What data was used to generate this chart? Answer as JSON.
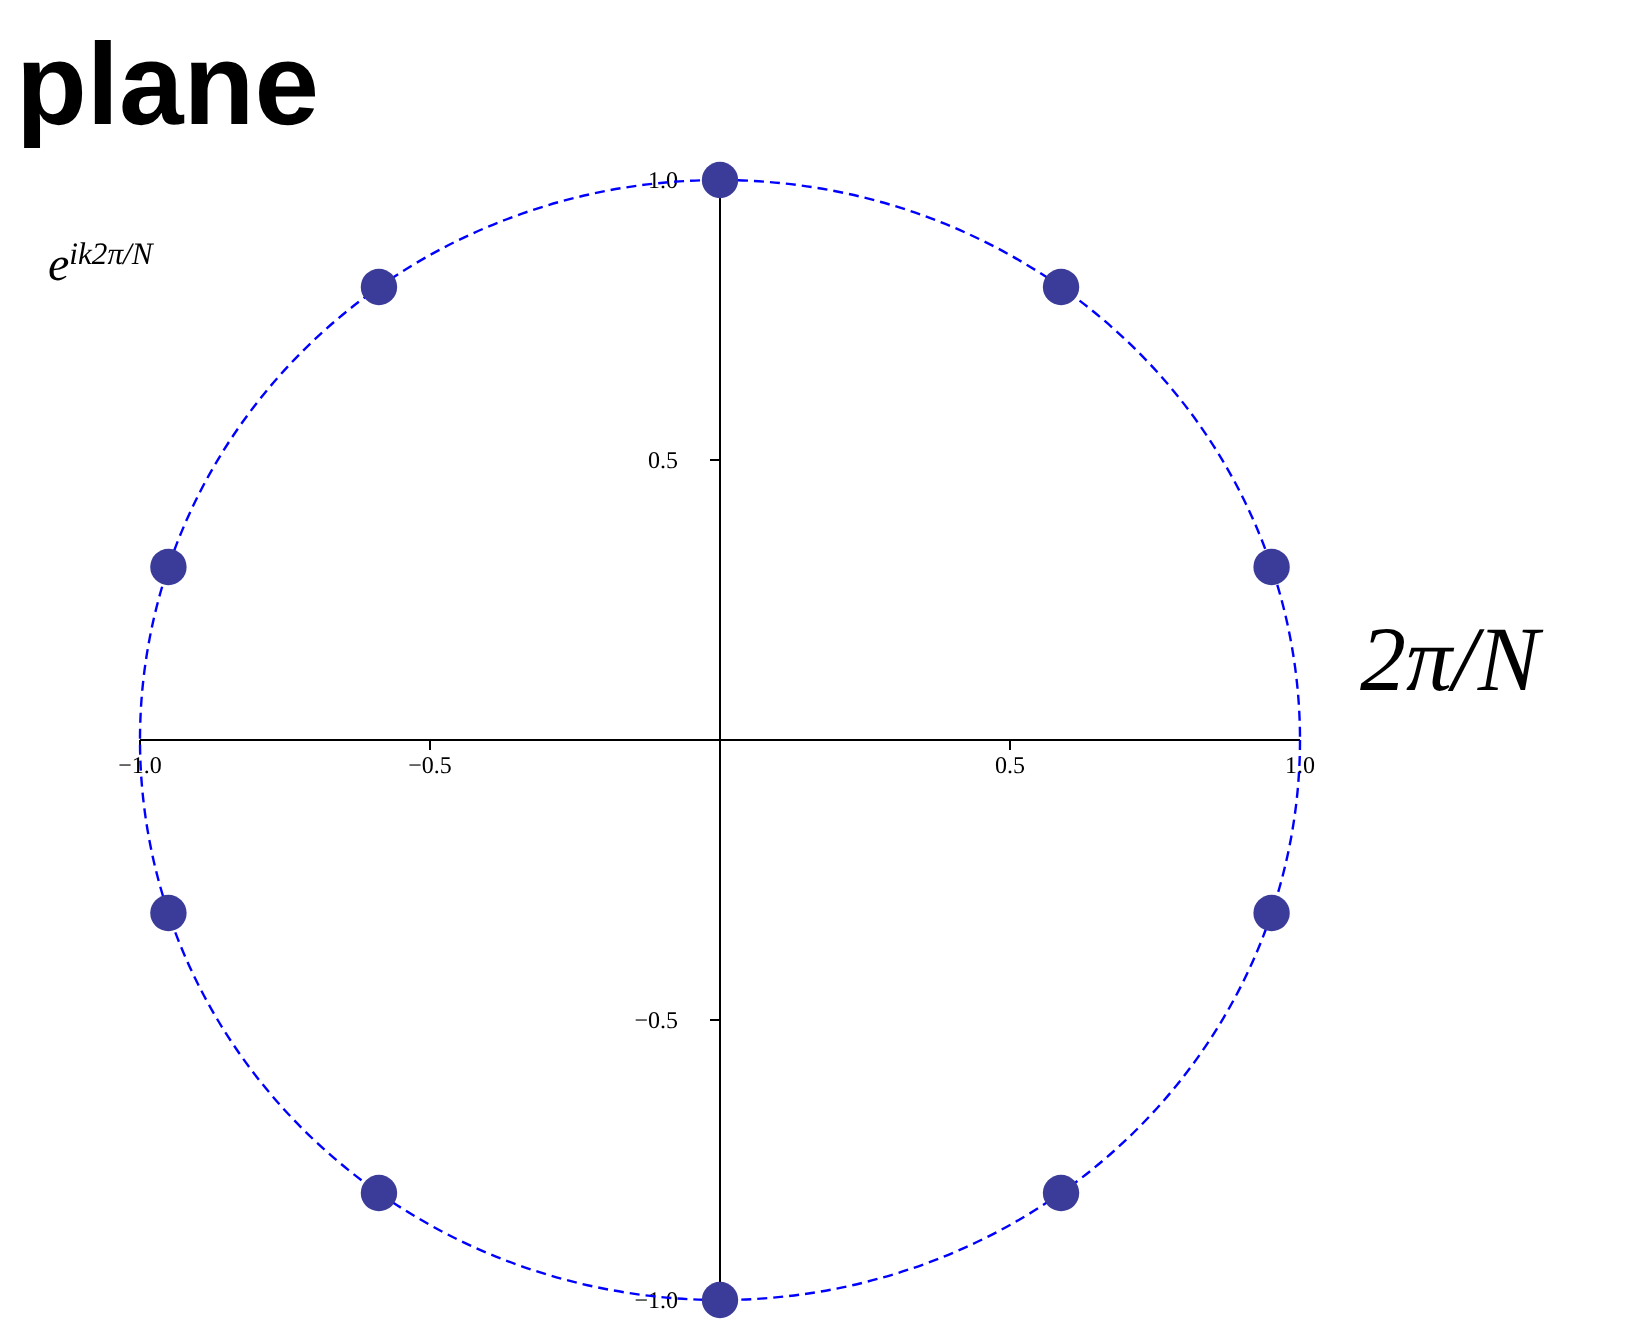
{
  "chart_data": {
    "type": "scatter",
    "title": "plane",
    "xlim": [
      -1,
      1
    ],
    "ylim": [
      -1,
      1
    ],
    "xticks": [
      {
        "value": -1,
        "label": "−1.0"
      },
      {
        "value": -0.5,
        "label": "−0.5"
      },
      0.5,
      {
        "value": 1,
        "label": "1.0"
      }
    ],
    "yticks": [
      {
        "value": -1,
        "label": "−1.0"
      },
      {
        "value": -0.5,
        "label": "−0.5"
      },
      0.5,
      {
        "value": 1,
        "label": "1.0"
      }
    ],
    "grid": false,
    "marker": "circle",
    "annotations": [
      "e$^{ik2π/N}$",
      "2π/N"
    ],
    "series": [
      {
        "color": "#3b3b9a",
        "x": [
          0,
          0.588,
          0.951,
          0.951,
          0.588,
          0,
          -0.588,
          -0.951,
          -0.951,
          -0.588
        ],
        "values": [
          1,
          0.809,
          0.309,
          -0.309,
          -0.809,
          -1,
          -0.809,
          -0.309,
          0.309,
          0.809
        ]
      }
    ]
  }
}
